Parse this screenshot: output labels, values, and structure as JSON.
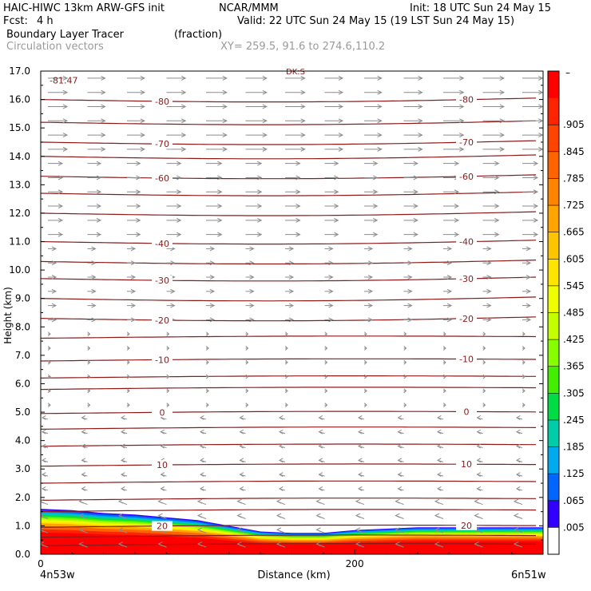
{
  "header": {
    "model": "HAIC-HIWC 13km ARW-GFS init",
    "org": "NCAR/MMM",
    "init": "Init: 18 UTC Sun 24 May 15",
    "fcst_label": "Fcst:",
    "fcst_value": "4 h",
    "valid": "Valid: 22 UTC Sun 24 May 15 (19 LST Sun 24 May 15)",
    "field": "Boundary Layer Tracer",
    "field_units": "(fraction)",
    "vectors": "Circulation vectors",
    "xy": "XY= 259.5, 91.6 to 274.6,110.2"
  },
  "colors": {
    "contour": "#8b1a1a",
    "vector": "#8c8c8c"
  },
  "chart_data": {
    "type": "heatmap",
    "ylabel": "Height (km)",
    "xlabel": "Distance (km)",
    "ylim": [
      0,
      17
    ],
    "y_ticks": [
      "0.0",
      "1.0",
      "2.0",
      "3.0",
      "4.0",
      "5.0",
      "6.0",
      "7.0",
      "8.0",
      "9.0",
      "10.0",
      "11.0",
      "12.0",
      "13.0",
      "14.0",
      "15.0",
      "16.0",
      "17.0"
    ],
    "xlim": [
      0,
      320
    ],
    "x_ticks": [
      {
        "value": 0,
        "label": "0"
      },
      {
        "value": 200,
        "label": "200"
      }
    ],
    "endpoint_labels": {
      "left": "4n53w",
      "right": "6n51w"
    },
    "colorbar": {
      "top_label": "–",
      "labels": [
        ".905",
        ".845",
        ".785",
        ".725",
        ".665",
        ".605",
        ".545",
        ".485",
        ".425",
        ".365",
        ".305",
        ".245",
        ".185",
        ".125",
        ".065",
        ".005"
      ],
      "colors": [
        "#ff0000",
        "#ff2400",
        "#ff4400",
        "#ff6400",
        "#ff8400",
        "#ffa400",
        "#ffc400",
        "#ffe400",
        "#f0ff00",
        "#c4ff00",
        "#88ff00",
        "#44ee00",
        "#00dd44",
        "#00ccaa",
        "#00aaee",
        "#0066ff",
        "#3300ff",
        "#ffffff"
      ]
    },
    "temperature_contours": [
      {
        "label": "-80",
        "km": 16.0
      },
      {
        "label": "-70",
        "km": 14.5
      },
      {
        "label": "-60",
        "km": 13.3
      },
      {
        "label": "-40",
        "km": 11.0
      },
      {
        "label": "-30",
        "km": 9.7
      },
      {
        "label": "-20",
        "km": 8.3
      },
      {
        "label": "-10",
        "km": 6.8
      },
      {
        "label": "0",
        "km": 4.95
      },
      {
        "label": "10",
        "km": 3.1
      },
      {
        "label": "20",
        "km": 0.95
      }
    ],
    "unlabeled_contour_km": [
      15.2,
      14.0,
      12.7,
      12.0,
      10.3,
      9.0,
      7.6,
      6.2,
      5.8,
      4.4,
      3.8,
      2.5,
      1.9,
      1.5,
      0.6,
      0.3
    ],
    "extreme_label": "-81.47",
    "top_partial_label": "DK:S",
    "tracer_top_km": [
      1.6,
      1.55,
      1.45,
      1.4,
      1.3,
      1.2,
      1.0,
      0.8,
      0.75,
      0.75,
      0.85,
      0.9,
      0.95,
      0.95,
      0.95,
      0.95,
      0.95
    ],
    "tracer_top_x": [
      0,
      20,
      40,
      60,
      80,
      100,
      120,
      140,
      160,
      180,
      200,
      220,
      240,
      260,
      280,
      300,
      320
    ]
  }
}
